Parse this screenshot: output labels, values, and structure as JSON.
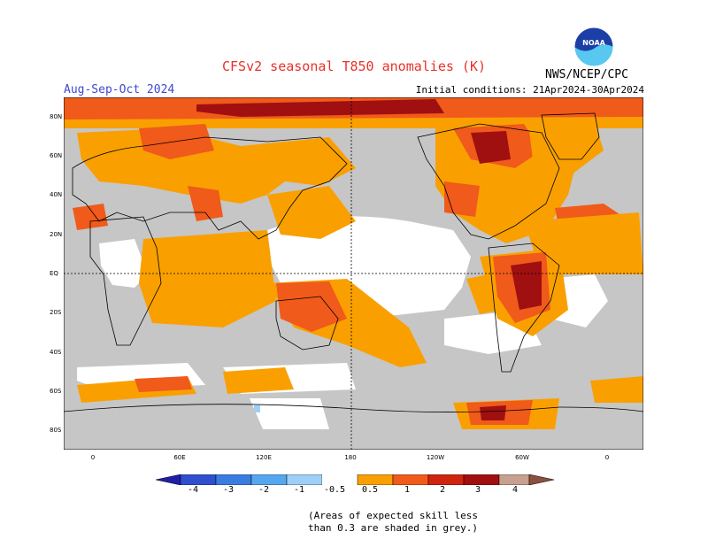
{
  "header": {
    "title": "CFSv2 seasonal T850 anomalies (K)",
    "season": "Aug-Sep-Oct 2024",
    "initial_conditions": "Initial conditions: 21Apr2024-30Apr2024",
    "agency": "NWS/NCEP/CPC",
    "logo_text": "NOAA"
  },
  "axes": {
    "lat_labels": [
      "80N",
      "60N",
      "40N",
      "20N",
      "EQ",
      "20S",
      "40S",
      "60S",
      "80S"
    ],
    "lon_labels": [
      "0",
      "60E",
      "120E",
      "180",
      "120W",
      "60W",
      "0"
    ]
  },
  "legend": {
    "labels": [
      "-4",
      "-3",
      "-2",
      "-1",
      "-0.5",
      "0.5",
      "1",
      "2",
      "3",
      "4"
    ],
    "colors": [
      "#1f1fa8",
      "#2f4fd0",
      "#3a7de0",
      "#55a8f0",
      "#9ed0f7",
      "#ffffff",
      "#f9a000",
      "#f05a1a",
      "#d02410",
      "#a01010",
      "#c8a090",
      "#8a5040"
    ],
    "grey_color": "#c6c6c6"
  },
  "note": {
    "line1": "(Areas of expected skill less",
    "line2": "than 0.3 are shaded in grey.)"
  },
  "colors": {
    "title": "#e8312a",
    "season": "#3f48cc",
    "orange": "#f9a000",
    "red_orange": "#f05a1a",
    "red": "#d02410",
    "dark_red": "#a01010",
    "grey": "#c6c6c6",
    "light_blue": "#9ed0f7"
  }
}
